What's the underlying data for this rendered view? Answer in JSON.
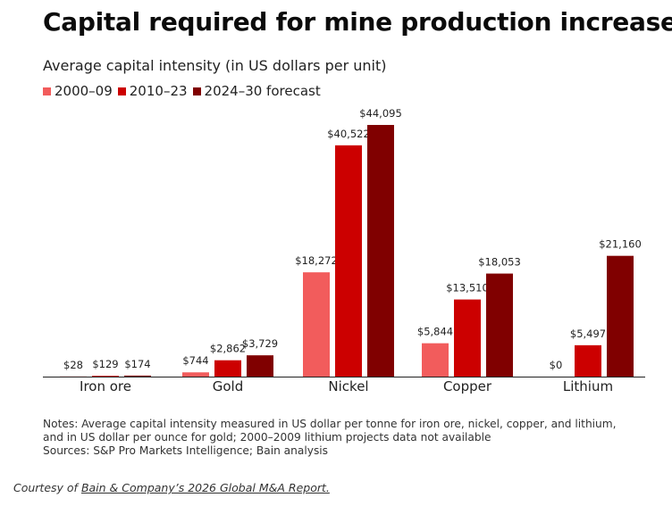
{
  "title": "Capital required for mine production increases",
  "subtitle": "Average capital intensity (in US dollars per unit)",
  "colors": {
    "2000–09": "#f25c5c",
    "2010–23": "#cc0000",
    "2024–30 forecast": "#800000"
  },
  "chart_data": {
    "type": "bar",
    "categories": [
      "Iron ore",
      "Gold",
      "Nickel",
      "Copper",
      "Lithium"
    ],
    "series": [
      {
        "name": "2000–09",
        "values": [
          28,
          744,
          18272,
          5844,
          0
        ],
        "labels": [
          "$28",
          "$744",
          "$18,272",
          "$5,844",
          "$0"
        ]
      },
      {
        "name": "2010–23",
        "values": [
          129,
          2862,
          40522,
          13510,
          5497
        ],
        "labels": [
          "$129",
          "$2,862",
          "$40,522",
          "$13,510",
          "$5,497"
        ]
      },
      {
        "name": "2024–30 forecast",
        "values": [
          174,
          3729,
          44095,
          18053,
          21160
        ],
        "labels": [
          "$174",
          "$3,729",
          "$44,095",
          "$18,053",
          "$21,160"
        ]
      }
    ],
    "ylim": [
      0,
      44095
    ],
    "grid": false,
    "legend_position": "top-left"
  },
  "notes": [
    "Notes: Average capital intensity measured in US dollar per tonne for iron ore, nickel, copper, and lithium,",
    "and in US dollar per ounce for gold; 2000–2009 lithium projects data not available",
    "Sources: S&P Pro Markets Intelligence; Bain analysis"
  ],
  "credit": {
    "prefix": "Courtesy of ",
    "link": "Bain & Company’s 2026 Global M&A Report."
  }
}
